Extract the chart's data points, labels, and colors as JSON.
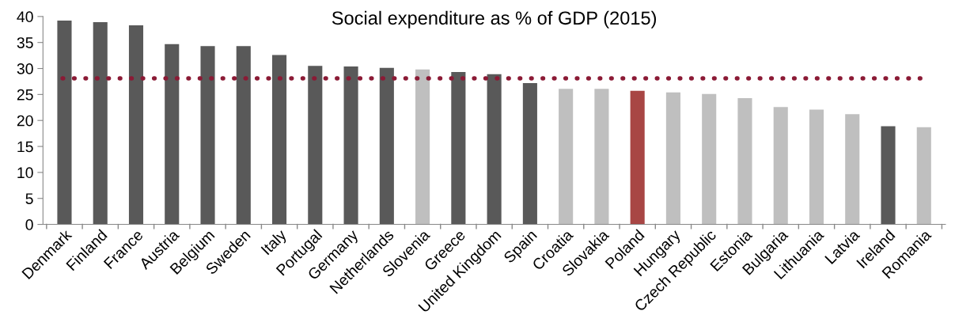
{
  "chart_data": {
    "type": "bar",
    "title": "Social expenditure as % of GDP (2015)",
    "categories": [
      "Denmark",
      "Finland",
      "France",
      "Austria",
      "Belgium",
      "Sweden",
      "Italy",
      "Portugal",
      "Germany",
      "Netherlands",
      "Slovenia",
      "Greece",
      "United Kingdom",
      "Spain",
      "Croatia",
      "Slovakia",
      "Poland",
      "Hungary",
      "Czech Republic",
      "Estonia",
      "Bulgaria",
      "Lithuania",
      "Latvia",
      "Ireland",
      "Romania"
    ],
    "values": [
      39.2,
      38.9,
      38.3,
      34.7,
      34.3,
      34.3,
      32.6,
      30.5,
      30.4,
      30.1,
      29.8,
      29.3,
      28.9,
      27.2,
      26.1,
      26.1,
      25.7,
      25.4,
      25.1,
      24.3,
      22.6,
      22.1,
      21.2,
      18.9,
      18.7
    ],
    "colors": [
      "#595959",
      "#595959",
      "#595959",
      "#595959",
      "#595959",
      "#595959",
      "#595959",
      "#595959",
      "#595959",
      "#595959",
      "#bfbfbf",
      "#595959",
      "#595959",
      "#595959",
      "#bfbfbf",
      "#bfbfbf",
      "#a84644",
      "#bfbfbf",
      "#bfbfbf",
      "#bfbfbf",
      "#bfbfbf",
      "#bfbfbf",
      "#bfbfbf",
      "#595959",
      "#bfbfbf"
    ],
    "ylim": [
      0,
      40
    ],
    "yticks": [
      0,
      5,
      10,
      15,
      20,
      25,
      30,
      35,
      40
    ],
    "grid": false,
    "legend": false,
    "ref_lines": [
      {
        "axis": "y",
        "value": 28.1,
        "label": null,
        "color": "#8b1a35",
        "line_style": "dotted"
      }
    ]
  }
}
